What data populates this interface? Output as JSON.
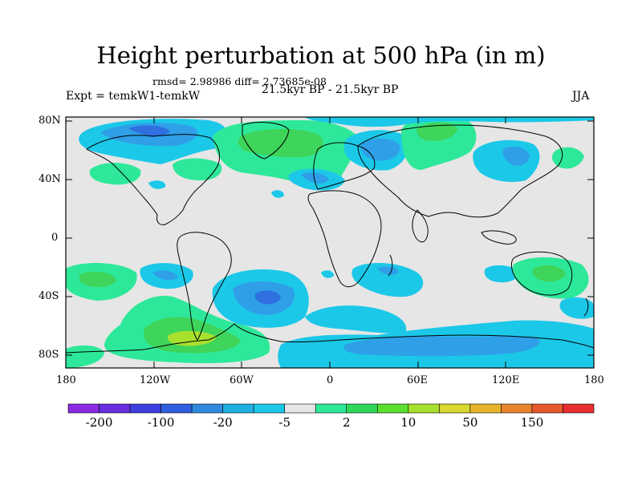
{
  "title": "Height perturbation at 500 hPa (in m)",
  "stats": "rmsd= 2.98986 diff= 2.73685e-08",
  "expt_label": "Expt = temkW1-temkW",
  "period": "21.5kyr BP - 21.5kyr BP",
  "season": "JJA",
  "y_axis_labels": [
    "80N",
    "40N",
    "0",
    "40S",
    "80S"
  ],
  "x_axis_labels": [
    "180",
    "120W",
    "60W",
    "0",
    "60E",
    "120E",
    "180"
  ],
  "colorbar": {
    "colors": [
      "#8a2be2",
      "#6a2fe0",
      "#3f3fe0",
      "#2f5fe0",
      "#2f8ae0",
      "#1fb0e0",
      "#1cc8e8",
      "#e6e6e6",
      "#2ee89a",
      "#2ed85a",
      "#5ae02e",
      "#a8e02e",
      "#d8d82e",
      "#e8b42e",
      "#e8842e",
      "#e8582e",
      "#e82e2e"
    ],
    "labels": [
      "-200",
      "-100",
      "-20",
      "-5",
      "2",
      "10",
      "50",
      "150"
    ]
  },
  "palette": {
    "background": "#e6e6e6",
    "neg_light": "#1cc8e8",
    "neg_mid": "#2f9fe8",
    "neg_dark": "#2f6fe0",
    "pos_light": "#2ee89a",
    "pos_mid": "#3fd45a",
    "pos_strong": "#a8e02e"
  }
}
